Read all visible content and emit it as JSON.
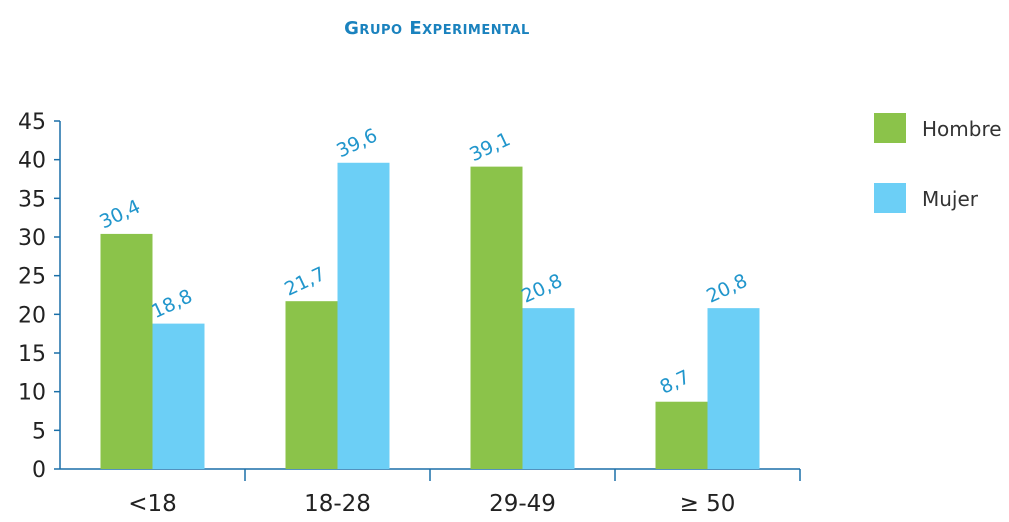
{
  "chart_data": {
    "type": "bar",
    "title": "Grupo Experimental",
    "categories": [
      "<18",
      "18-28",
      "29-49",
      "≥ 50"
    ],
    "series": [
      {
        "name": "Hombre",
        "color": "#8bc34a",
        "values": [
          30.4,
          21.7,
          39.1,
          8.7
        ],
        "labels": [
          "30,4",
          "21,7",
          "39,1",
          "8,7"
        ]
      },
      {
        "name": "Mujer",
        "color": "#6ccff6",
        "values": [
          18.8,
          39.6,
          20.8,
          20.8
        ],
        "labels": [
          "18,8",
          "39,6",
          "20,8",
          "20,8"
        ]
      }
    ],
    "ylim": [
      0,
      45
    ],
    "yticks": [
      0,
      5,
      10,
      15,
      20,
      25,
      30,
      35,
      40,
      45
    ],
    "grid": false,
    "legend_position": "right",
    "axis_color": "#1a6fa8",
    "label_color": "#2196cc"
  }
}
